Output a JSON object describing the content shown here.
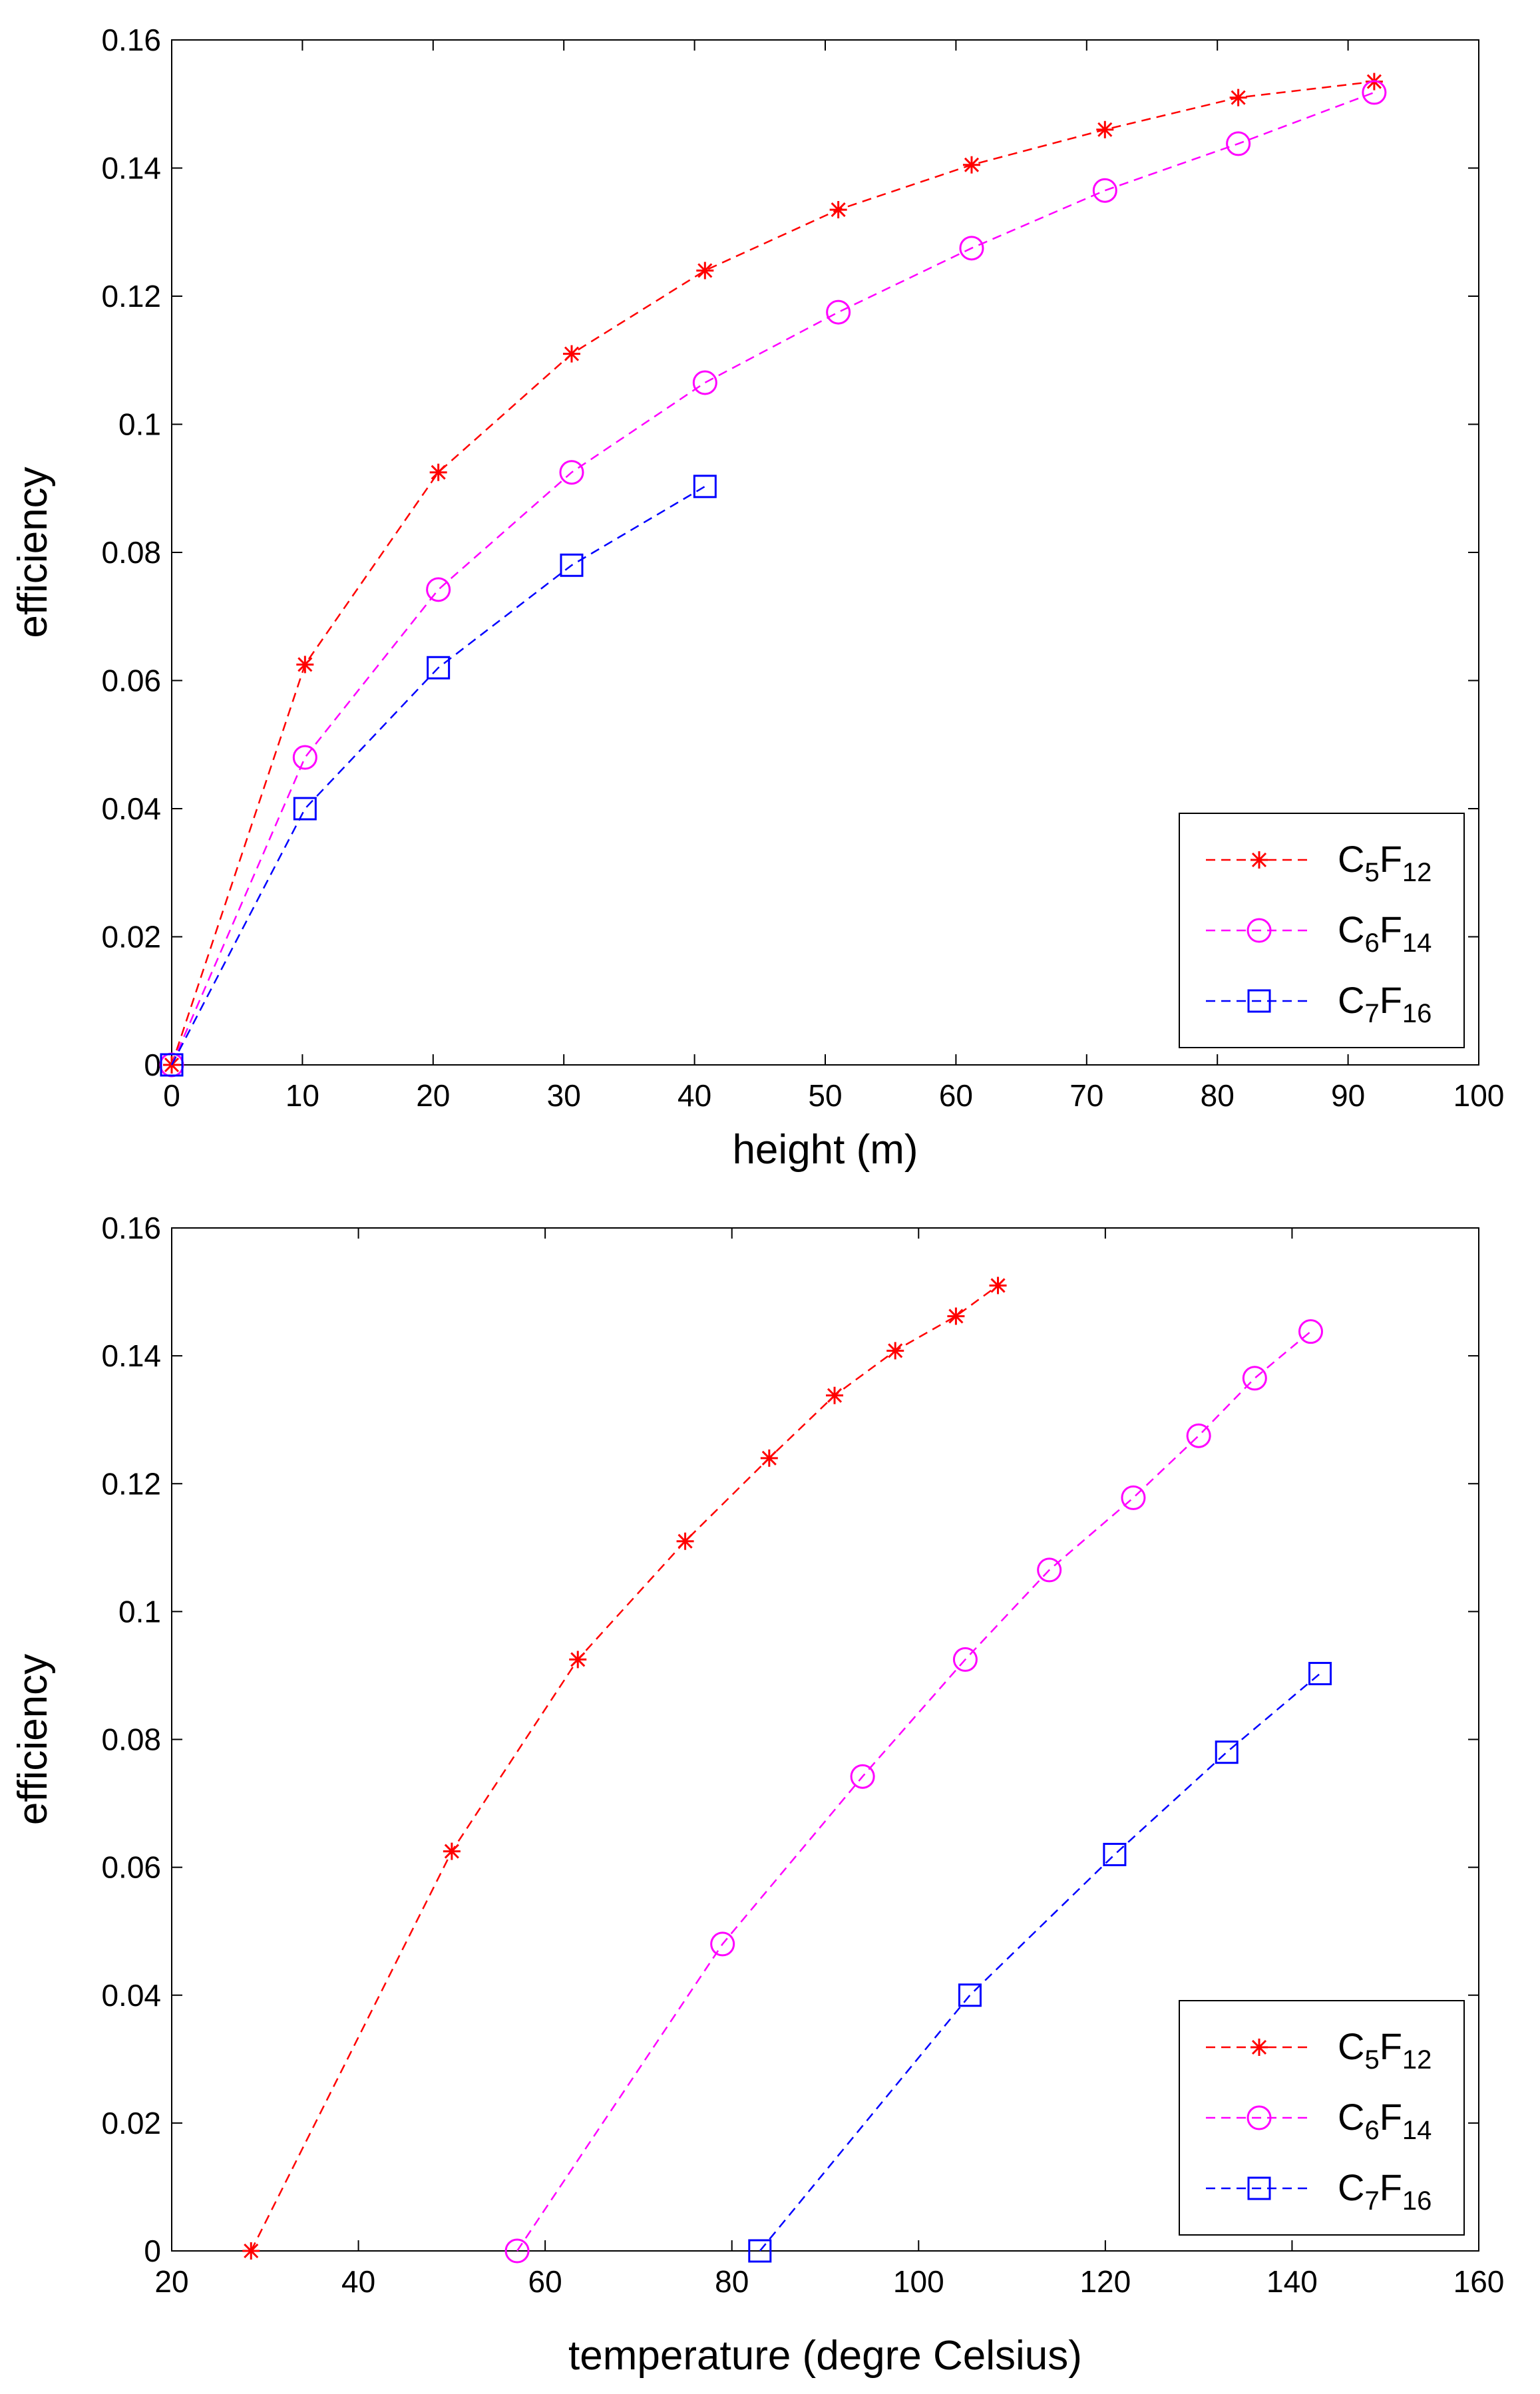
{
  "chart_data": [
    {
      "type": "line",
      "title": "",
      "xlabel": "height (m)",
      "ylabel": "efficiency",
      "xlim": [
        0,
        100
      ],
      "ylim": [
        0,
        0.16
      ],
      "xticks": [
        0,
        10,
        20,
        30,
        40,
        50,
        60,
        70,
        80,
        90,
        100
      ],
      "yticks": [
        0,
        0.02,
        0.04,
        0.06,
        0.08,
        0.1,
        0.12,
        0.14,
        0.16
      ],
      "xtick_labels": [
        "0",
        "10",
        "20",
        "30",
        "40",
        "50",
        "60",
        "70",
        "80",
        "90",
        "100"
      ],
      "ytick_labels": [
        "0",
        "0.02",
        "0.04",
        "0.06",
        "0.08",
        "0.1",
        "0.12",
        "0.14",
        "0.16"
      ],
      "legend_position": "bottom-right",
      "series": [
        {
          "name": "C5F12",
          "base": "C",
          "n1": "5",
          "elem": "F",
          "n2": "12",
          "color": "#ff0000",
          "marker": "star",
          "x": [
            0,
            10.2,
            20.4,
            30.6,
            40.8,
            51,
            61.2,
            71.4,
            81.6,
            92
          ],
          "y": [
            0,
            0.0625,
            0.0925,
            0.111,
            0.124,
            0.1335,
            0.1405,
            0.146,
            0.151,
            0.1535
          ]
        },
        {
          "name": "C6F14",
          "base": "C",
          "n1": "6",
          "elem": "F",
          "n2": "14",
          "color": "#ff00ff",
          "marker": "circle",
          "x": [
            0,
            10.2,
            20.4,
            30.6,
            40.8,
            51,
            61.2,
            71.4,
            81.6,
            92
          ],
          "y": [
            0,
            0.048,
            0.0742,
            0.0925,
            0.1065,
            0.1175,
            0.1275,
            0.1365,
            0.1438,
            0.1518
          ]
        },
        {
          "name": "C7F16",
          "base": "C",
          "n1": "7",
          "elem": "F",
          "n2": "16",
          "color": "#0000ff",
          "marker": "square",
          "x": [
            0,
            10.2,
            20.4,
            30.6,
            40.8
          ],
          "y": [
            0,
            0.04,
            0.062,
            0.078,
            0.0903
          ]
        }
      ]
    },
    {
      "type": "line",
      "title": "",
      "xlabel": "temperature (degre Celsius)",
      "ylabel": "efficiency",
      "xlim": [
        20,
        160
      ],
      "ylim": [
        0,
        0.16
      ],
      "xticks": [
        20,
        40,
        60,
        80,
        100,
        120,
        140,
        160
      ],
      "yticks": [
        0,
        0.02,
        0.04,
        0.06,
        0.08,
        0.1,
        0.12,
        0.14,
        0.16
      ],
      "xtick_labels": [
        "20",
        "40",
        "60",
        "80",
        "100",
        "120",
        "140",
        "160"
      ],
      "ytick_labels": [
        "0",
        "0.02",
        "0.04",
        "0.06",
        "0.08",
        "0.1",
        "0.12",
        "0.14",
        "0.16"
      ],
      "legend_position": "bottom-right",
      "series": [
        {
          "name": "C5F12",
          "base": "C",
          "n1": "5",
          "elem": "F",
          "n2": "12",
          "color": "#ff0000",
          "marker": "star",
          "x": [
            28.5,
            50,
            63.5,
            75,
            84,
            91,
            97.5,
            104,
            108.5
          ],
          "y": [
            0,
            0.0625,
            0.0925,
            0.111,
            0.124,
            0.1338,
            0.1408,
            0.1462,
            0.151
          ]
        },
        {
          "name": "C6F14",
          "base": "C",
          "n1": "6",
          "elem": "F",
          "n2": "14",
          "color": "#ff00ff",
          "marker": "circle",
          "x": [
            57,
            79,
            94,
            105,
            114,
            123,
            130,
            136,
            142
          ],
          "y": [
            0,
            0.048,
            0.0742,
            0.0925,
            0.1065,
            0.1178,
            0.1275,
            0.1365,
            0.1438
          ]
        },
        {
          "name": "C7F16",
          "base": "C",
          "n1": "7",
          "elem": "F",
          "n2": "16",
          "color": "#0000ff",
          "marker": "square",
          "x": [
            83,
            105.5,
            121,
            133,
            143
          ],
          "y": [
            0,
            0.04,
            0.062,
            0.078,
            0.0903
          ]
        }
      ]
    }
  ]
}
